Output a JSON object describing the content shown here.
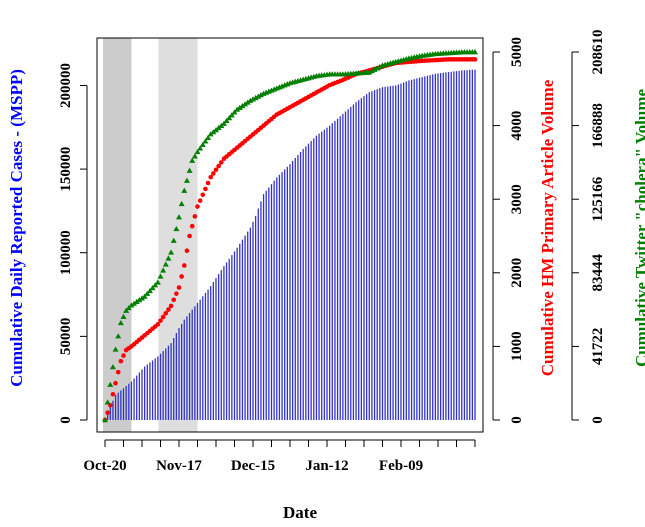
{
  "chart_data": {
    "type": "bar+line",
    "title": "",
    "xlabel": "Date",
    "x_ticks": [
      "Oct-20",
      "Nov-17",
      "Dec-15",
      "Jan-12",
      "Feb-09"
    ],
    "x_range_days": [
      0,
      140
    ],
    "shaded_periods_days": [
      [
        0,
        10
      ],
      [
        21,
        35
      ]
    ],
    "axes": {
      "left": {
        "label": "Cumulative Daily Reported Cases - (MSPP)",
        "color": "#0000ff",
        "ticks": [
          0,
          50000,
          100000,
          150000,
          200000
        ],
        "range": [
          0,
          220000
        ]
      },
      "right_inner": {
        "label": "Cumulative HM Primary Article Volume",
        "color": "#ff0000",
        "ticks": [
          0,
          1000,
          2000,
          3000,
          4000,
          5000
        ],
        "range": [
          0,
          5000
        ]
      },
      "right_outer": {
        "label": "Cumulative Twitter \"cholera\" Volume",
        "color": "#008000",
        "ticks": [
          0,
          41722,
          83444,
          125166,
          166888,
          208610
        ],
        "range": [
          0,
          208610
        ]
      }
    },
    "series": [
      {
        "name": "Cumulative Daily Reported Cases - (MSPP)",
        "type": "bar",
        "axis": "left",
        "color": "#3333cc",
        "points": [
          [
            0,
            1000
          ],
          [
            2,
            8000
          ],
          [
            4,
            15000
          ],
          [
            10,
            23000
          ],
          [
            15,
            32000
          ],
          [
            20,
            38000
          ],
          [
            25,
            46000
          ],
          [
            28,
            55000
          ],
          [
            30,
            60000
          ],
          [
            35,
            70000
          ],
          [
            40,
            80000
          ],
          [
            45,
            92000
          ],
          [
            50,
            103000
          ],
          [
            55,
            115000
          ],
          [
            57,
            122000
          ],
          [
            60,
            135000
          ],
          [
            65,
            145000
          ],
          [
            70,
            153000
          ],
          [
            75,
            162000
          ],
          [
            80,
            170000
          ],
          [
            85,
            176000
          ],
          [
            90,
            183000
          ],
          [
            95,
            190000
          ],
          [
            100,
            196000
          ],
          [
            105,
            199000
          ],
          [
            110,
            200000
          ],
          [
            115,
            203000
          ],
          [
            120,
            205000
          ],
          [
            125,
            207000
          ],
          [
            130,
            208000
          ],
          [
            135,
            209000
          ],
          [
            140,
            209500
          ]
        ]
      },
      {
        "name": "Cumulative HM Primary Article Volume",
        "type": "scatter",
        "axis": "right_inner",
        "color": "#ff0000",
        "points": [
          [
            0,
            0
          ],
          [
            2,
            200
          ],
          [
            4,
            500
          ],
          [
            6,
            800
          ],
          [
            8,
            950
          ],
          [
            10,
            1000
          ],
          [
            15,
            1150
          ],
          [
            20,
            1300
          ],
          [
            25,
            1550
          ],
          [
            28,
            1800
          ],
          [
            30,
            2100
          ],
          [
            32,
            2500
          ],
          [
            35,
            2900
          ],
          [
            40,
            3300
          ],
          [
            45,
            3550
          ],
          [
            50,
            3700
          ],
          [
            55,
            3850
          ],
          [
            60,
            4000
          ],
          [
            65,
            4150
          ],
          [
            70,
            4250
          ],
          [
            75,
            4350
          ],
          [
            80,
            4450
          ],
          [
            85,
            4550
          ],
          [
            90,
            4620
          ],
          [
            95,
            4700
          ],
          [
            100,
            4750
          ],
          [
            105,
            4800
          ],
          [
            110,
            4850
          ],
          [
            120,
            4880
          ],
          [
            130,
            4900
          ],
          [
            140,
            4900
          ]
        ]
      },
      {
        "name": "Cumulative Twitter \"cholera\" Volume",
        "type": "scatter",
        "axis": "right_outer",
        "color": "#008000",
        "points": [
          [
            0,
            0
          ],
          [
            2,
            20000
          ],
          [
            4,
            40000
          ],
          [
            6,
            55000
          ],
          [
            8,
            62000
          ],
          [
            10,
            65000
          ],
          [
            15,
            70000
          ],
          [
            20,
            78000
          ],
          [
            25,
            95000
          ],
          [
            28,
            115000
          ],
          [
            30,
            130000
          ],
          [
            33,
            147000
          ],
          [
            35,
            152000
          ],
          [
            40,
            162000
          ],
          [
            45,
            168000
          ],
          [
            50,
            176000
          ],
          [
            55,
            181000
          ],
          [
            60,
            185000
          ],
          [
            65,
            188000
          ],
          [
            70,
            191000
          ],
          [
            75,
            193000
          ],
          [
            80,
            195000
          ],
          [
            85,
            196000
          ],
          [
            90,
            196000
          ],
          [
            95,
            196500
          ],
          [
            100,
            197000
          ],
          [
            105,
            201000
          ],
          [
            110,
            203000
          ],
          [
            115,
            205000
          ],
          [
            120,
            206500
          ],
          [
            125,
            207500
          ],
          [
            130,
            208000
          ],
          [
            135,
            208500
          ],
          [
            140,
            208600
          ]
        ]
      }
    ]
  }
}
